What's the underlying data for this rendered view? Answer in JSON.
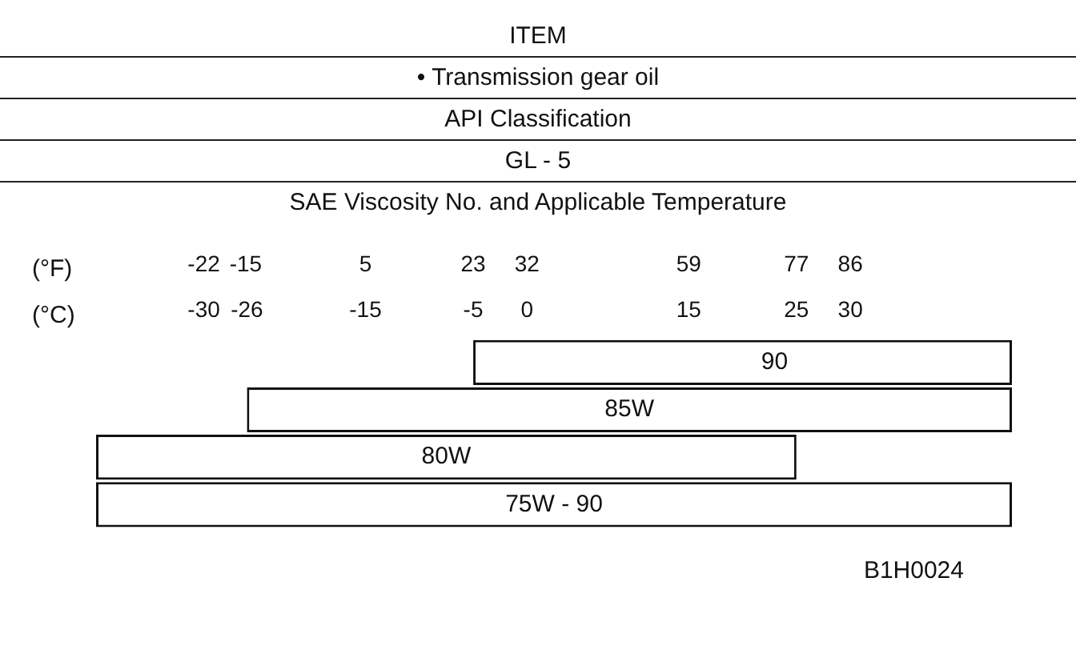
{
  "chart_data": {
    "type": "bar",
    "orientation": "horizontal",
    "title": "ITEM",
    "subtitle": "• Transmission gear oil",
    "xlabel": "(°C)",
    "x2label": "(°F)",
    "categories": [
      "90",
      "85W",
      "80W",
      "75W - 90"
    ],
    "base": [
      -5,
      -26,
      -40,
      -40
    ],
    "values": [
      50,
      71,
      65,
      85
    ],
    "color": "#ffffff",
    "xlim": [
      -40,
      45
    ],
    "xticks": [
      -30,
      -26,
      -15,
      -5,
      0,
      15,
      25,
      30
    ],
    "x2lim": [
      -40,
      113
    ],
    "x2ticks": [
      -22,
      -15,
      5,
      23,
      32,
      59,
      77,
      86
    ],
    "annotations": [
      "API Classification",
      "GL - 5",
      "SAE Viscosity No. and Applicable Temperature",
      "B1H0024"
    ],
    "grid": false,
    "legend": false
  }
}
